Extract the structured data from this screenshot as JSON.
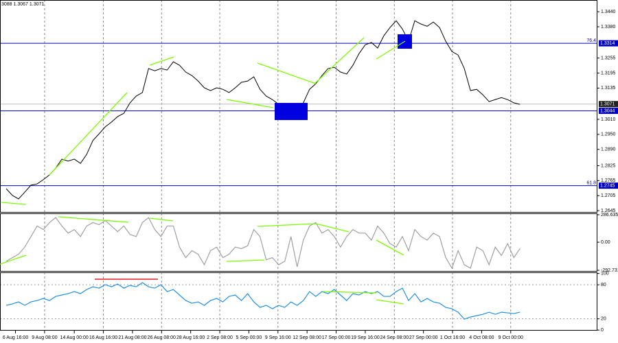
{
  "chart_data": [
    {
      "type": "line",
      "header": "3088 1.3067 1.3071",
      "xlim": [
        -1,
        95.5
      ],
      "xticks": [
        {
          "value": 1.5,
          "label": "6 Aug 16:00"
        },
        {
          "value": 6.2,
          "label": "9 Aug 08:00"
        },
        {
          "value": 11,
          "label": "14 Aug 00:00"
        },
        {
          "value": 15.7,
          "label": "16 Aug 16:00"
        },
        {
          "value": 20.4,
          "label": "21 Aug 08:00"
        },
        {
          "value": 25.1,
          "label": "26 Aug 08:00"
        },
        {
          "value": 29.8,
          "label": "28 Aug 16:00"
        },
        {
          "value": 34.5,
          "label": "2 Sep 08:00"
        },
        {
          "value": 39.2,
          "label": "5 Sep 00:00"
        },
        {
          "value": 43.9,
          "label": "9 Sep 16:00"
        },
        {
          "value": 48.6,
          "label": "12 Sep 08:00"
        },
        {
          "value": 53.3,
          "label": "17 Sep 00:00"
        },
        {
          "value": 58,
          "label": "19 Sep 16:00"
        },
        {
          "value": 62.7,
          "label": "24 Sep 08:00"
        },
        {
          "value": 67.4,
          "label": "27 Sep 00:00"
        },
        {
          "value": 72.1,
          "label": "1 Oct 16:00"
        },
        {
          "value": 76.8,
          "label": "4 Oct 08:00"
        },
        {
          "value": 81.5,
          "label": "9 Oct 00:00"
        }
      ],
      "ylim": [
        1.2637,
        1.3487
      ],
      "yticks": [
        {
          "value": 1.344,
          "label": "1.3440"
        },
        {
          "value": 1.338,
          "label": "1.3380"
        },
        1.3255,
        1.3195,
        1.3135,
        {
          "value": 1.301,
          "label": "1.3010"
        },
        {
          "value": 1.295,
          "label": "1.2950"
        },
        {
          "value": 1.289,
          "label": "1.2890"
        },
        1.2825,
        1.2765,
        1.2705,
        1.2645
      ],
      "color": "#000000",
      "values": [
        1.2733,
        1.2706,
        1.2692,
        1.2719,
        1.2747,
        1.2752,
        1.2769,
        1.2788,
        1.2815,
        1.2851,
        1.2843,
        1.2851,
        1.2834,
        1.287,
        1.2925,
        1.2952,
        1.298,
        1.2999,
        1.3021,
        1.3034,
        1.3076,
        1.3103,
        1.3117,
        1.3213,
        1.3204,
        1.3213,
        1.3207,
        1.324,
        1.3226,
        1.3199,
        1.3185,
        1.3163,
        1.3136,
        1.3125,
        1.3136,
        1.313,
        1.3117,
        1.3136,
        1.3158,
        1.3163,
        1.318,
        1.313,
        1.3103,
        1.3089,
        1.307,
        1.3054,
        1.3062,
        1.3043,
        1.3076,
        1.313,
        1.3152,
        1.3185,
        1.3213,
        1.3218,
        1.3199,
        1.3191,
        1.3226,
        1.3273,
        1.3308,
        1.3317,
        1.3295,
        1.3344,
        1.3377,
        1.3404,
        1.3371,
        1.3322,
        1.3404,
        1.3391,
        1.3382,
        1.3399,
        1.3377,
        1.3322,
        1.3281,
        1.3267,
        1.3213,
        1.3125,
        1.313,
        1.3108,
        1.3081,
        1.3089,
        1.3097,
        1.3089,
        1.3076,
        1.307
      ],
      "levels": [
        {
          "value": 1.3314,
          "label": "76.4",
          "color": "#0000c0"
        },
        {
          "value": 1.3044,
          "color": "#0000c0"
        },
        {
          "value": 1.2745,
          "label": "61.8",
          "color": "#0000c0"
        }
      ],
      "last": 1.3071
    },
    {
      "type": "line",
      "ylim": [
        -307,
        301
      ],
      "yticks": [
        286.6354,
        {
          "value": 0,
          "label": "0.00"
        },
        {
          "value": -292.731,
          "label": "-292.7310"
        }
      ],
      "color": "#a0a0a0",
      "values": [
        -198,
        -161,
        -125,
        -51,
        59,
        169,
        132,
        205,
        257,
        169,
        95,
        132,
        59,
        169,
        205,
        183,
        227,
        169,
        110,
        169,
        81,
        59,
        205,
        257,
        132,
        59,
        169,
        169,
        -51,
        -161,
        -88,
        -125,
        -235,
        -88,
        -51,
        -161,
        -125,
        -51,
        -66,
        -37,
        132,
        59,
        -183,
        -161,
        -235,
        -198,
        59,
        -257,
        22,
        169,
        205,
        95,
        132,
        59,
        -51,
        59,
        132,
        95,
        95,
        22,
        169,
        95,
        -15,
        -51,
        59,
        -88,
        132,
        59,
        22,
        95,
        59,
        -161,
        -271,
        -88,
        -235,
        -271,
        -51,
        -88,
        -235,
        -51,
        -139,
        -15,
        -161,
        -66
      ]
    },
    {
      "type": "line",
      "ylim": [
        -1,
        102
      ],
      "yticks": [
        100,
        80,
        20,
        0
      ],
      "color": "#1e8fe6",
      "values": [
        43.7,
        46.2,
        49.8,
        43.7,
        49.8,
        52.2,
        55.9,
        52.2,
        59.5,
        62,
        64.4,
        68,
        64.4,
        71.7,
        76.5,
        74.1,
        80.2,
        76.5,
        81.4,
        74.1,
        79,
        76.5,
        83.8,
        76.5,
        74.1,
        80.2,
        68,
        71.7,
        62,
        52.2,
        47.4,
        49.8,
        43.7,
        52.2,
        55.9,
        49.8,
        59.5,
        62,
        52.2,
        64.4,
        49.8,
        40.1,
        43.7,
        37.7,
        43.7,
        40.1,
        49.8,
        43.7,
        52.2,
        68,
        59.5,
        68,
        64.4,
        71.7,
        62,
        52.2,
        64.4,
        62,
        68,
        64.4,
        68,
        59.5,
        59.5,
        68,
        74.1,
        52.2,
        64.4,
        49.8,
        55.9,
        49.8,
        47.4,
        40.1,
        37.7,
        31.6,
        19.4,
        23.1,
        25.5,
        27.9,
        31.6,
        27.9,
        31.6,
        30.4,
        29.2,
        31.6
      ]
    }
  ]
}
